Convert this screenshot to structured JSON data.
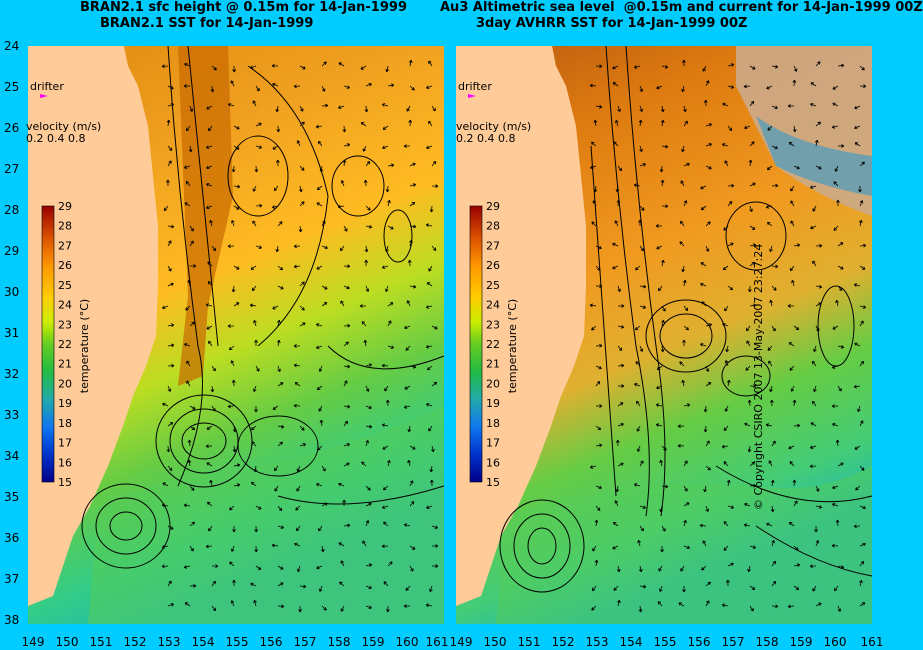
{
  "titles": {
    "left_line1": "BRAN2.1 sfc height @ 0.15m for 14-Jan-1999",
    "left_line2": "BRAN2.1 SST for 14-Jan-1999",
    "right_line1": "Au3 Altimetric sea level  @0.15m and current for 14-Jan-1999 00Z",
    "right_line2": "3day AVHRR SST for 14-Jan-1999 00Z"
  },
  "y_labels": [
    "24",
    "25",
    "26",
    "27",
    "28",
    "29",
    "30",
    "31",
    "32",
    "33",
    "34",
    "35",
    "36",
    "37",
    "38"
  ],
  "x_labels_left": [
    "149",
    "150",
    "151",
    "152",
    "153",
    "154",
    "155",
    "156",
    "157",
    "158",
    "159",
    "160",
    "161"
  ],
  "x_labels_right": [
    "149",
    "150",
    "151",
    "152",
    "153",
    "154",
    "155",
    "156",
    "157",
    "158",
    "159",
    "160",
    "161"
  ],
  "legend": {
    "drifter": "drifter",
    "velocity_title": "velocity (m/s)",
    "velocity_scale": "0.2 0.4 0.8"
  },
  "colorbar": {
    "axis_title": "temperature (°C)",
    "ticks": [
      "29",
      "28",
      "27",
      "26",
      "25",
      "24",
      "23",
      "22",
      "21",
      "20",
      "19",
      "18",
      "17",
      "16",
      "15"
    ]
  },
  "copyright": "© Copyright CSIRO 2007   13-May-2007 23:27:24",
  "colors": {
    "background": "#00ccff",
    "land": "#ffcc99",
    "warm": "#dd7a00",
    "mid": "#ffa800",
    "cool": "#66cc33",
    "cold": "#22bb99"
  }
}
